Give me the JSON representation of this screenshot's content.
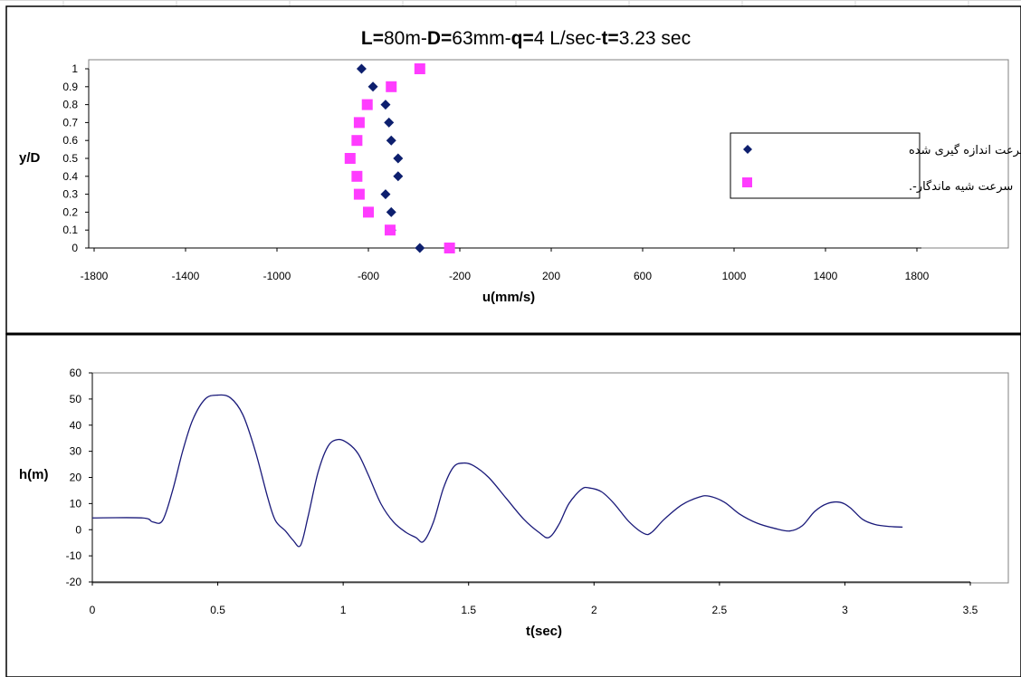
{
  "chart_data": [
    {
      "type": "scatter",
      "title_parts": [
        {
          "text": "L=",
          "bold": true
        },
        {
          "text": "80m-",
          "bold": false
        },
        {
          "text": "D=",
          "bold": true
        },
        {
          "text": "63mm-",
          "bold": false
        },
        {
          "text": "q=",
          "bold": true
        },
        {
          "text": "4 L/sec-",
          "bold": false
        },
        {
          "text": "t=",
          "bold": true
        },
        {
          "text": "3.23 sec",
          "bold": false
        }
      ],
      "xlabel": "u(mm/s)",
      "ylabel": "y/D",
      "xlim": [
        -1800,
        1800
      ],
      "ylim": [
        0,
        1
      ],
      "xticks": [
        "-1800",
        "-1400",
        "-1000",
        "-600",
        "-200",
        "200",
        "600",
        "1000",
        "1400",
        "1800"
      ],
      "yticks": [
        "0",
        "0.1",
        "0.2",
        "0.3",
        "0.4",
        "0.5",
        "0.6",
        "0.7",
        "0.8",
        "0.9",
        "1"
      ],
      "legend_position": "right",
      "series": [
        {
          "name": "سرعت اندازه گیری شده",
          "marker": "diamond",
          "color": "#0d1f6e",
          "points": [
            [
              -375,
              0
            ],
            [
              -500,
              0.1
            ],
            [
              -500,
              0.2
            ],
            [
              -525,
              0.3
            ],
            [
              -470,
              0.4
            ],
            [
              -470,
              0.5
            ],
            [
              -500,
              0.6
            ],
            [
              -510,
              0.7
            ],
            [
              -525,
              0.8
            ],
            [
              -580,
              0.9
            ],
            [
              -630,
              1.0
            ]
          ]
        },
        {
          "name": "سرعت شیه ماندگار-.",
          "marker": "square",
          "color": "#ff3cff",
          "points": [
            [
              -245,
              0
            ],
            [
              -505,
              0.1
            ],
            [
              -600,
              0.2
            ],
            [
              -640,
              0.3
            ],
            [
              -650,
              0.4
            ],
            [
              -680,
              0.5
            ],
            [
              -650,
              0.6
            ],
            [
              -640,
              0.7
            ],
            [
              -605,
              0.8
            ],
            [
              -500,
              0.9
            ],
            [
              -375,
              1.0
            ]
          ]
        }
      ]
    },
    {
      "type": "line",
      "xlabel": "t(sec)",
      "ylabel": "h(m)",
      "xlim": [
        0,
        3.5
      ],
      "ylim": [
        -20,
        60
      ],
      "xticks": [
        "0",
        "0.5",
        "1",
        "1.5",
        "2",
        "2.5",
        "3",
        "3.5"
      ],
      "yticks": [
        "-20",
        "-10",
        "0",
        "10",
        "20",
        "30",
        "40",
        "50",
        "60"
      ],
      "series": [
        {
          "color": "#1a1a7a",
          "points": [
            [
              0,
              4.5
            ],
            [
              0.2,
              4.5
            ],
            [
              0.24,
              3.0
            ],
            [
              0.28,
              3.5
            ],
            [
              0.32,
              15
            ],
            [
              0.36,
              30
            ],
            [
              0.4,
              42
            ],
            [
              0.45,
              50
            ],
            [
              0.5,
              51.5
            ],
            [
              0.55,
              50.5
            ],
            [
              0.6,
              44
            ],
            [
              0.65,
              30
            ],
            [
              0.7,
              12
            ],
            [
              0.73,
              3.5
            ],
            [
              0.77,
              -0.5
            ],
            [
              0.8,
              -4
            ],
            [
              0.83,
              -6
            ],
            [
              0.86,
              5
            ],
            [
              0.9,
              22
            ],
            [
              0.94,
              32
            ],
            [
              0.98,
              34.5
            ],
            [
              1.02,
              33
            ],
            [
              1.06,
              29
            ],
            [
              1.1,
              21
            ],
            [
              1.15,
              10
            ],
            [
              1.2,
              3
            ],
            [
              1.25,
              -1
            ],
            [
              1.29,
              -3
            ],
            [
              1.32,
              -4.5
            ],
            [
              1.36,
              3
            ],
            [
              1.4,
              16
            ],
            [
              1.44,
              24
            ],
            [
              1.48,
              25.5
            ],
            [
              1.52,
              24.5
            ],
            [
              1.58,
              20
            ],
            [
              1.65,
              12
            ],
            [
              1.72,
              4
            ],
            [
              1.78,
              -1
            ],
            [
              1.82,
              -3
            ],
            [
              1.86,
              2
            ],
            [
              1.9,
              10
            ],
            [
              1.95,
              15.5
            ],
            [
              1.98,
              16
            ],
            [
              2.03,
              14.5
            ],
            [
              2.08,
              10
            ],
            [
              2.14,
              3
            ],
            [
              2.2,
              -1.5
            ],
            [
              2.23,
              -1
            ],
            [
              2.28,
              4
            ],
            [
              2.35,
              9.5
            ],
            [
              2.42,
              12.5
            ],
            [
              2.46,
              12.8
            ],
            [
              2.52,
              10.5
            ],
            [
              2.58,
              6
            ],
            [
              2.65,
              2.5
            ],
            [
              2.72,
              0.5
            ],
            [
              2.78,
              -0.5
            ],
            [
              2.83,
              1.5
            ],
            [
              2.88,
              7
            ],
            [
              2.93,
              10
            ],
            [
              2.98,
              10.5
            ],
            [
              3.02,
              8.5
            ],
            [
              3.07,
              4
            ],
            [
              3.12,
              2
            ],
            [
              3.18,
              1.2
            ],
            [
              3.23,
              1.0
            ]
          ]
        }
      ]
    }
  ],
  "colors": {
    "frame_border": "#000000",
    "plot_border": "#808080",
    "background": "#ffffff"
  }
}
